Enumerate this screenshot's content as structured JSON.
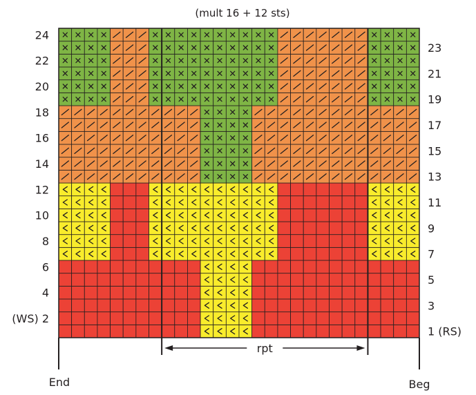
{
  "title": "(mult 16 + 12 sts)",
  "stitches": 28,
  "rows": 24,
  "colors": {
    "green": "#7fb545",
    "orange": "#f0924a",
    "yellow": "#f9ec2c",
    "red": "#ec4236",
    "grid": "#231f20"
  },
  "symbols": {
    "green": "x-cross-icon",
    "orange": "slash-icon",
    "yellow": "less-than-icon",
    "red": "blank"
  },
  "row_rules": [
    {
      "rows": "1-6",
      "center": "yellow",
      "center_range": [
        11,
        14
      ],
      "rest": "red"
    },
    {
      "rows": "7-12",
      "side": "yellow",
      "side_ranges": [
        [
          0,
          3
        ],
        [
          7,
          16
        ],
        [
          24,
          27
        ]
      ],
      "rest": "red"
    },
    {
      "rows": "13-18",
      "center": "green",
      "center_range": [
        11,
        14
      ],
      "rest": "orange"
    },
    {
      "rows": "19-24",
      "side": "green",
      "side_ranges": [
        [
          0,
          3
        ],
        [
          7,
          16
        ],
        [
          24,
          27
        ]
      ],
      "rest": "orange"
    }
  ],
  "left_row_labels": [
    {
      "row": 24,
      "text": "24"
    },
    {
      "row": 22,
      "text": "22"
    },
    {
      "row": 20,
      "text": "20"
    },
    {
      "row": 18,
      "text": "18"
    },
    {
      "row": 16,
      "text": "16"
    },
    {
      "row": 14,
      "text": "14"
    },
    {
      "row": 12,
      "text": "12"
    },
    {
      "row": 10,
      "text": "10"
    },
    {
      "row": 8,
      "text": "8"
    },
    {
      "row": 6,
      "text": "6"
    },
    {
      "row": 4,
      "text": "4"
    },
    {
      "row": 2,
      "text": "(WS) 2"
    }
  ],
  "right_row_labels": [
    {
      "row": 23,
      "text": "23"
    },
    {
      "row": 21,
      "text": "21"
    },
    {
      "row": 19,
      "text": "19"
    },
    {
      "row": 17,
      "text": "17"
    },
    {
      "row": 15,
      "text": "15"
    },
    {
      "row": 13,
      "text": "13"
    },
    {
      "row": 11,
      "text": "11"
    },
    {
      "row": 9,
      "text": "9"
    },
    {
      "row": 7,
      "text": "7"
    },
    {
      "row": 5,
      "text": "5"
    },
    {
      "row": 3,
      "text": "3"
    },
    {
      "row": 1,
      "text": "1 (RS)"
    }
  ],
  "repeat": {
    "label": "rpt",
    "from_stitch": 8,
    "to_stitch": 23
  },
  "end_label": "End",
  "beg_label": "Beg"
}
